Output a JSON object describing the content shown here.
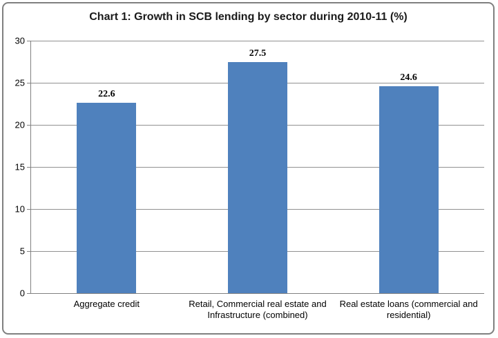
{
  "chart_data": {
    "type": "bar",
    "title": "Chart 1: Growth in SCB lending by sector during 2010-11 (%)",
    "categories": [
      "Aggregate credit",
      "Retail, Commercial real estate and Infrastructure (combined)",
      "Real estate loans (commercial and residential)"
    ],
    "values": [
      22.6,
      27.5,
      24.6
    ],
    "value_labels": [
      "22.6",
      "27.5",
      "24.6"
    ],
    "xlabel": "",
    "ylabel": "",
    "ylim": [
      0,
      30
    ],
    "yticks": [
      0,
      5,
      10,
      15,
      20,
      25,
      30
    ],
    "grid": "horizontal-only",
    "legend_position": "none",
    "colors": {
      "bar_fill": "#4F81BD",
      "gridline": "#909090",
      "axis": "#808080",
      "frame_border": "#7F7F7F",
      "background": "#FFFFFF",
      "text": "#000000"
    }
  }
}
